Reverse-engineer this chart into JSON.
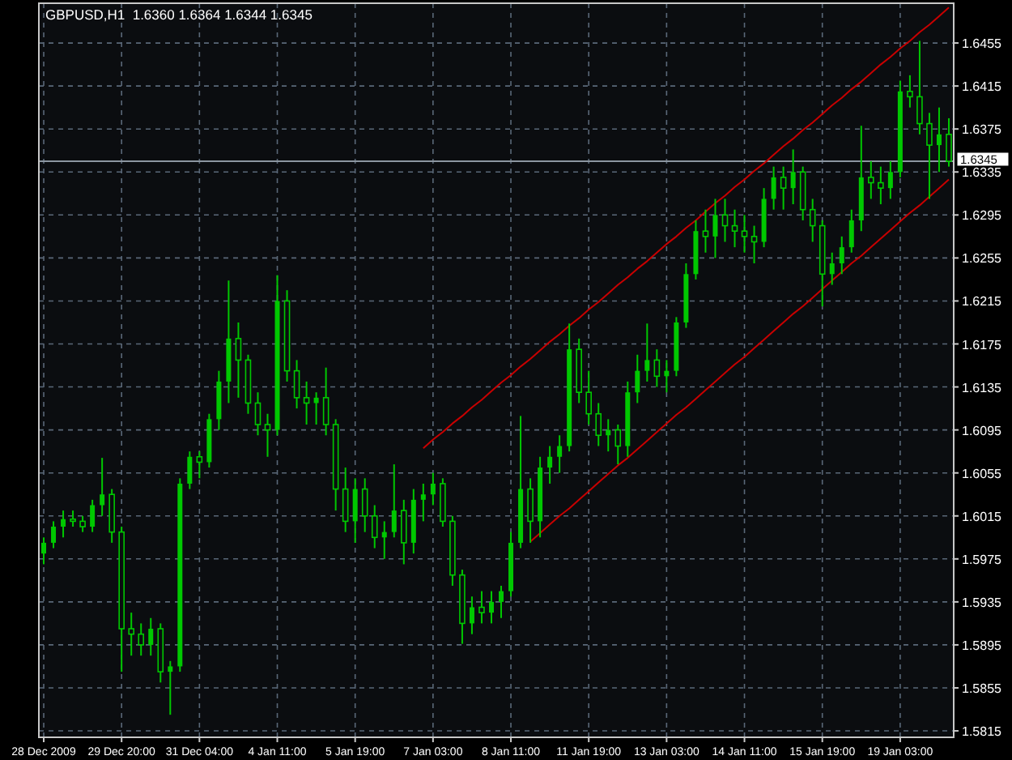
{
  "chart_data": {
    "type": "candlestick",
    "title": "GBPUSD,H1  1.6360 1.6364 1.6344 1.6345",
    "color": "#00c800",
    "grid": true,
    "ylim": [
      1.5809,
      1.6492
    ],
    "yticks": [
      1.6455,
      1.6415,
      1.6375,
      1.6335,
      1.6295,
      1.6255,
      1.6215,
      1.6175,
      1.6135,
      1.6095,
      1.6055,
      1.6015,
      1.5975,
      1.5935,
      1.5895,
      1.5855,
      1.5815
    ],
    "categories": [
      "28 Dec 2009",
      null,
      null,
      null,
      null,
      null,
      null,
      null,
      "29 Dec 20:00",
      null,
      null,
      null,
      null,
      null,
      null,
      null,
      "31 Dec 04:00",
      null,
      null,
      null,
      null,
      null,
      null,
      null,
      "4 Jan 11:00",
      null,
      null,
      null,
      null,
      null,
      null,
      null,
      "5 Jan 19:00",
      null,
      null,
      null,
      null,
      null,
      null,
      null,
      "7 Jan 03:00",
      null,
      null,
      null,
      null,
      null,
      null,
      null,
      "8 Jan 11:00",
      null,
      null,
      null,
      null,
      null,
      null,
      null,
      "11 Jan 19:00",
      null,
      null,
      null,
      null,
      null,
      null,
      null,
      "13 Jan 03:00",
      null,
      null,
      null,
      null,
      null,
      null,
      null,
      "14 Jan 11:00",
      null,
      null,
      null,
      null,
      null,
      null,
      null,
      "15 Jan 19:00",
      null,
      null,
      null,
      null,
      null,
      null,
      null,
      "19 Jan 03:00",
      null,
      null,
      null,
      null,
      null
    ],
    "ohlc": [
      [
        1.598,
        1.5995,
        1.597,
        1.599
      ],
      [
        1.599,
        1.601,
        1.5985,
        1.6005
      ],
      [
        1.6005,
        1.602,
        1.5995,
        1.6012
      ],
      [
        1.6012,
        1.602,
        1.6005,
        1.601
      ],
      [
        1.601,
        1.6015,
        1.6,
        1.6005
      ],
      [
        1.6005,
        1.603,
        1.6,
        1.6025
      ],
      [
        1.6025,
        1.6069,
        1.6015,
        1.6035
      ],
      [
        1.6035,
        1.604,
        1.599,
        1.6
      ],
      [
        1.6,
        1.6005,
        1.587,
        1.591
      ],
      [
        1.591,
        1.5925,
        1.5885,
        1.5905
      ],
      [
        1.5905,
        1.5915,
        1.5885,
        1.5895
      ],
      [
        1.5895,
        1.592,
        1.5885,
        1.591
      ],
      [
        1.591,
        1.5915,
        1.586,
        1.587
      ],
      [
        1.587,
        1.588,
        1.583,
        1.5875
      ],
      [
        1.5875,
        1.605,
        1.587,
        1.6045
      ],
      [
        1.6045,
        1.6075,
        1.604,
        1.607
      ],
      [
        1.607,
        1.6075,
        1.605,
        1.6065
      ],
      [
        1.6065,
        1.611,
        1.606,
        1.6105
      ],
      [
        1.6105,
        1.615,
        1.6095,
        1.614
      ],
      [
        1.614,
        1.6234,
        1.612,
        1.618
      ],
      [
        1.618,
        1.6195,
        1.6125,
        1.616
      ],
      [
        1.616,
        1.6165,
        1.611,
        1.612
      ],
      [
        1.612,
        1.613,
        1.609,
        1.61
      ],
      [
        1.61,
        1.611,
        1.607,
        1.6095
      ],
      [
        1.6095,
        1.6239,
        1.609,
        1.6215
      ],
      [
        1.6215,
        1.6225,
        1.614,
        1.615
      ],
      [
        1.615,
        1.616,
        1.6115,
        1.6125
      ],
      [
        1.6125,
        1.614,
        1.61,
        1.612
      ],
      [
        1.612,
        1.613,
        1.61,
        1.6125
      ],
      [
        1.6125,
        1.6153,
        1.609,
        1.61
      ],
      [
        1.61,
        1.6105,
        1.602,
        1.604
      ],
      [
        1.604,
        1.606,
        1.6,
        1.601
      ],
      [
        1.601,
        1.605,
        1.599,
        1.604
      ],
      [
        1.604,
        1.605,
        1.6,
        1.6015
      ],
      [
        1.6015,
        1.6025,
        1.5985,
        1.5995
      ],
      [
        1.5995,
        1.601,
        1.5975,
        1.6
      ],
      [
        1.6,
        1.6063,
        1.5995,
        1.602
      ],
      [
        1.602,
        1.603,
        1.597,
        1.599
      ],
      [
        1.599,
        1.604,
        1.598,
        1.603
      ],
      [
        1.603,
        1.6045,
        1.601,
        1.6035
      ],
      [
        1.6035,
        1.6055,
        1.6025,
        1.6045
      ],
      [
        1.6045,
        1.605,
        1.6005,
        1.601
      ],
      [
        1.601,
        1.6015,
        1.595,
        1.596
      ],
      [
        1.596,
        1.5965,
        1.5896,
        1.5915
      ],
      [
        1.5915,
        1.594,
        1.5905,
        1.593
      ],
      [
        1.593,
        1.5945,
        1.5915,
        1.5925
      ],
      [
        1.5925,
        1.5945,
        1.5915,
        1.5935
      ],
      [
        1.5935,
        1.595,
        1.592,
        1.5945
      ],
      [
        1.5945,
        1.6,
        1.594,
        1.599
      ],
      [
        1.599,
        1.6108,
        1.5985,
        1.604
      ],
      [
        1.604,
        1.605,
        1.599,
        1.601
      ],
      [
        1.601,
        1.607,
        1.5995,
        1.606
      ],
      [
        1.606,
        1.608,
        1.6045,
        1.607
      ],
      [
        1.607,
        1.609,
        1.6055,
        1.608
      ],
      [
        1.608,
        1.6194,
        1.6075,
        1.617
      ],
      [
        1.617,
        1.618,
        1.612,
        1.613
      ],
      [
        1.613,
        1.615,
        1.61,
        1.611
      ],
      [
        1.611,
        1.612,
        1.608,
        1.609
      ],
      [
        1.609,
        1.6105,
        1.6075,
        1.6095
      ],
      [
        1.6095,
        1.61,
        1.6063,
        1.608
      ],
      [
        1.608,
        1.614,
        1.607,
        1.613
      ],
      [
        1.613,
        1.6165,
        1.612,
        1.615
      ],
      [
        1.615,
        1.6194,
        1.614,
        1.616
      ],
      [
        1.616,
        1.617,
        1.6135,
        1.6145
      ],
      [
        1.6145,
        1.616,
        1.613,
        1.615
      ],
      [
        1.615,
        1.62,
        1.6145,
        1.6195
      ],
      [
        1.6195,
        1.625,
        1.619,
        1.624
      ],
      [
        1.624,
        1.629,
        1.6235,
        1.628
      ],
      [
        1.628,
        1.63,
        1.626,
        1.6275
      ],
      [
        1.6275,
        1.631,
        1.6255,
        1.6295
      ],
      [
        1.6295,
        1.631,
        1.627,
        1.6285
      ],
      [
        1.6285,
        1.63,
        1.6265,
        1.628
      ],
      [
        1.628,
        1.6295,
        1.626,
        1.6275
      ],
      [
        1.6275,
        1.6285,
        1.625,
        1.627
      ],
      [
        1.627,
        1.632,
        1.6265,
        1.631
      ],
      [
        1.631,
        1.634,
        1.63,
        1.633
      ],
      [
        1.633,
        1.634,
        1.63,
        1.632
      ],
      [
        1.632,
        1.6356,
        1.6305,
        1.6335
      ],
      [
        1.6335,
        1.634,
        1.629,
        1.63
      ],
      [
        1.63,
        1.631,
        1.627,
        1.6285
      ],
      [
        1.6285,
        1.629,
        1.621,
        1.624
      ],
      [
        1.624,
        1.626,
        1.623,
        1.625
      ],
      [
        1.625,
        1.6275,
        1.624,
        1.6265
      ],
      [
        1.6265,
        1.63,
        1.626,
        1.629
      ],
      [
        1.629,
        1.6378,
        1.628,
        1.633
      ],
      [
        1.633,
        1.6345,
        1.631,
        1.6325
      ],
      [
        1.6325,
        1.634,
        1.6305,
        1.632
      ],
      [
        1.632,
        1.6345,
        1.631,
        1.6335
      ],
      [
        1.6335,
        1.642,
        1.633,
        1.641
      ],
      [
        1.641,
        1.6425,
        1.6395,
        1.6405
      ],
      [
        1.6405,
        1.6457,
        1.637,
        1.638
      ],
      [
        1.638,
        1.639,
        1.631,
        1.636
      ],
      [
        1.636,
        1.6395,
        1.6335,
        1.637
      ],
      [
        1.637,
        1.6385,
        1.634,
        1.6345
      ]
    ],
    "series": [
      {
        "type": "line",
        "color": "#c80000",
        "values": [
          null,
          null,
          null,
          null,
          null,
          null,
          null,
          null,
          null,
          null,
          null,
          null,
          null,
          null,
          null,
          null,
          null,
          null,
          null,
          null,
          null,
          null,
          null,
          null,
          null,
          null,
          null,
          null,
          null,
          null,
          null,
          null,
          null,
          null,
          null,
          null,
          null,
          null,
          null,
          1.6078,
          1.6086,
          1.6093,
          1.6101,
          1.6108,
          1.6116,
          1.6123,
          1.6131,
          1.6139,
          1.6146,
          1.6154,
          1.6161,
          1.6169,
          1.6177,
          1.6184,
          1.6192,
          1.6199,
          1.6207,
          1.6214,
          1.6222,
          1.623,
          1.6237,
          1.6245,
          1.6252,
          1.626,
          1.6268,
          1.6275,
          1.6283,
          1.629,
          1.6298,
          1.6306,
          1.6313,
          1.6321,
          1.6328,
          1.6336,
          1.6343,
          1.6351,
          1.6359,
          1.6366,
          1.6374,
          1.6381,
          1.6389,
          1.6397,
          1.6404,
          1.6412,
          1.6419,
          1.6427,
          1.6435,
          1.6442,
          1.645,
          1.6457,
          1.6465,
          1.6472,
          1.648,
          1.6488
        ]
      },
      {
        "type": "line",
        "color": "#c80000",
        "values": [
          null,
          null,
          null,
          null,
          null,
          null,
          null,
          null,
          null,
          null,
          null,
          null,
          null,
          null,
          null,
          null,
          null,
          null,
          null,
          null,
          null,
          null,
          null,
          null,
          null,
          null,
          null,
          null,
          null,
          null,
          null,
          null,
          null,
          null,
          null,
          null,
          null,
          null,
          null,
          null,
          null,
          null,
          null,
          null,
          null,
          null,
          null,
          null,
          null,
          null,
          1.5991,
          1.5999,
          1.6007,
          1.6015,
          1.6022,
          1.603,
          1.6038,
          1.6046,
          1.6054,
          1.6062,
          1.6069,
          1.6077,
          1.6085,
          1.6093,
          1.6101,
          1.6109,
          1.6116,
          1.6124,
          1.6132,
          1.614,
          1.6148,
          1.6156,
          1.6163,
          1.6171,
          1.6179,
          1.6187,
          1.6195,
          1.6203,
          1.621,
          1.6218,
          1.6226,
          1.6234,
          1.6242,
          1.625,
          1.6257,
          1.6265,
          1.6273,
          1.6281,
          1.6289,
          1.6297,
          1.6304,
          1.6312,
          1.632,
          1.6328
        ]
      }
    ],
    "ref_lines": [
      {
        "axis": "y",
        "value": 1.6345,
        "label": "1.6345",
        "color": "#8c96a0"
      }
    ]
  }
}
